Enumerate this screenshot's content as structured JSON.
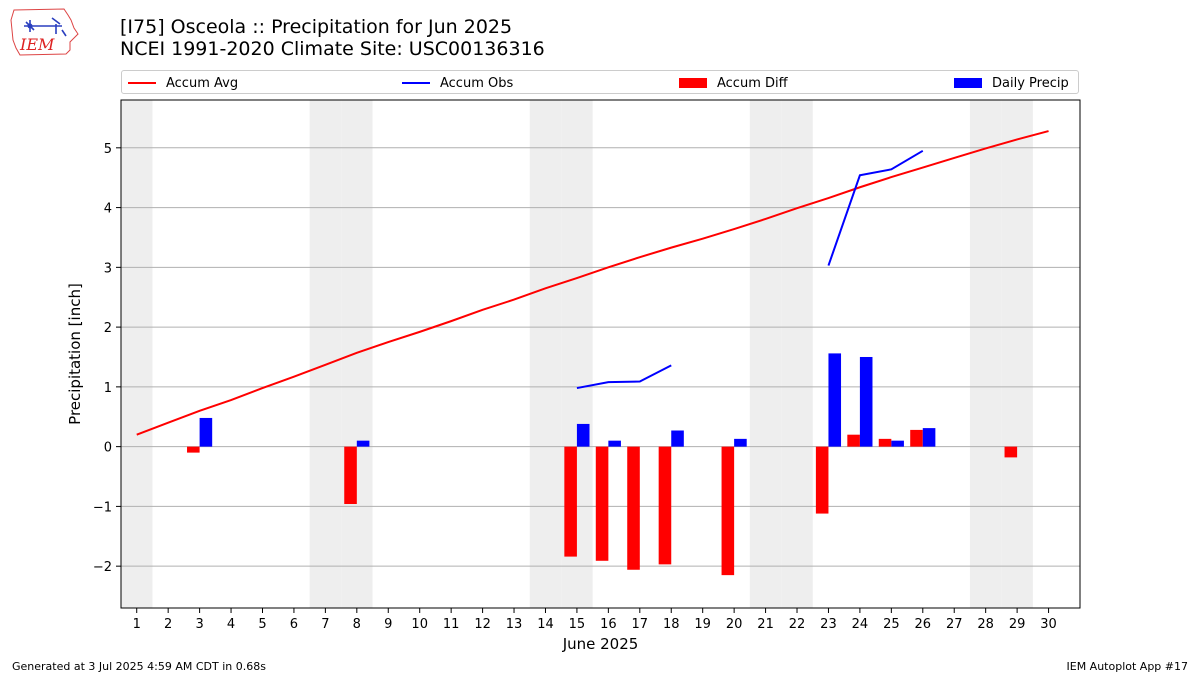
{
  "header": {
    "title_line1": "[I75] Osceola :: Precipitation for Jun 2025",
    "title_line2": "NCEI 1991-2020 Climate Site: USC00136316",
    "logo_text": "IEM"
  },
  "legend": {
    "accum_avg": "Accum Avg",
    "accum_obs": "Accum Obs",
    "accum_diff": "Accum Diff",
    "daily_precip": "Daily Precip"
  },
  "footer": {
    "generated": "Generated at 3 Jul 2025 4:59 AM CDT in 0.68s",
    "app": "IEM Autoplot App #17"
  },
  "colors": {
    "avg": "#ff0000",
    "obs": "#0000ff",
    "diff": "#ff0000",
    "daily": "#0000ff",
    "weekend_shade": "#eeeeee",
    "grid": "#b0b0b0"
  },
  "chart_data": {
    "type": "bar",
    "title": "[I75] Osceola :: Precipitation for Jun 2025",
    "subtitle": "NCEI 1991-2020 Climate Site: USC00136316",
    "xlabel": "June 2025",
    "ylabel": "Precipitation [inch]",
    "xlim": [
      0.5,
      31.0
    ],
    "ylim": [
      -2.7,
      5.8
    ],
    "x_ticks": [
      1,
      2,
      3,
      4,
      5,
      6,
      7,
      8,
      9,
      10,
      11,
      12,
      13,
      14,
      15,
      16,
      17,
      18,
      19,
      20,
      21,
      22,
      23,
      24,
      25,
      26,
      27,
      28,
      29,
      30
    ],
    "y_ticks": [
      -2,
      -1,
      0,
      1,
      2,
      3,
      4,
      5
    ],
    "y_tick_labels": [
      "−2",
      "−1",
      "0",
      "1",
      "2",
      "3",
      "4",
      "5"
    ],
    "grid": "horizontal",
    "legend_position": "top",
    "shaded_days": [
      1,
      7,
      8,
      14,
      15,
      21,
      22,
      28,
      29
    ],
    "series": [
      {
        "name": "Accum Avg",
        "kind": "line",
        "x": [
          1,
          2,
          3,
          4,
          5,
          6,
          7,
          8,
          9,
          10,
          11,
          12,
          13,
          14,
          15,
          16,
          17,
          18,
          19,
          20,
          21,
          22,
          23,
          24,
          25,
          26,
          27,
          28,
          29,
          30
        ],
        "values": [
          0.2,
          0.4,
          0.6,
          0.78,
          0.98,
          1.17,
          1.37,
          1.57,
          1.75,
          1.92,
          2.1,
          2.29,
          2.46,
          2.65,
          2.82,
          3.0,
          3.17,
          3.33,
          3.48,
          3.64,
          3.81,
          3.99,
          4.16,
          4.34,
          4.51,
          4.67,
          4.83,
          4.99,
          5.14,
          5.28
        ]
      },
      {
        "name": "Accum Obs",
        "kind": "line",
        "segments": [
          {
            "x": [
              15,
              16,
              17,
              18
            ],
            "values": [
              0.98,
              1.08,
              1.09,
              1.36
            ]
          },
          {
            "x": [
              23,
              24,
              25,
              26
            ],
            "values": [
              3.03,
              4.54,
              4.64,
              4.95
            ]
          }
        ]
      },
      {
        "name": "Accum Diff",
        "kind": "bar",
        "x": [
          3,
          8,
          15,
          16,
          17,
          18,
          20,
          23,
          24,
          25,
          26,
          29
        ],
        "values": [
          -0.1,
          -0.96,
          -1.84,
          -1.91,
          -2.06,
          -1.97,
          -2.15,
          -1.12,
          0.2,
          0.13,
          0.28,
          -0.18
        ]
      },
      {
        "name": "Daily Precip",
        "kind": "bar",
        "x": [
          3,
          8,
          15,
          16,
          18,
          20,
          23,
          24,
          25,
          26
        ],
        "values": [
          0.48,
          0.1,
          0.38,
          0.1,
          0.27,
          0.13,
          1.56,
          1.5,
          0.1,
          0.31
        ]
      }
    ]
  }
}
